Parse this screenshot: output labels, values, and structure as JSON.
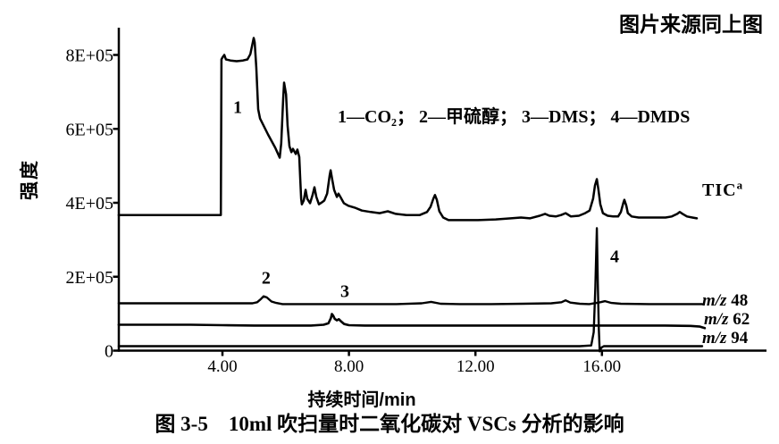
{
  "page": {
    "source_note": "图片来源同上图",
    "caption": "图 3-5　10ml 吹扫量时二氧化碳对 VSCs 分析的影响"
  },
  "chart_data": {
    "type": "line",
    "title": "",
    "xlabel": "持续时间/min",
    "ylabel": "强度",
    "legend": "1—CO₂； 2—甲硫醇； 3—DMS； 4—DMDS",
    "xlim": [
      0.7,
      21.2
    ],
    "ylim": [
      0,
      880000
    ],
    "y_value_scale": "series intensities are in units of 1E+05",
    "grid": false,
    "x_ticks": [
      {
        "t": 4,
        "label": "4.00"
      },
      {
        "t": 8,
        "label": "8.00"
      },
      {
        "t": 12,
        "label": "12.00"
      },
      {
        "t": 16,
        "label": "16.00"
      }
    ],
    "y_ticks": [
      {
        "v": 0,
        "label": "0"
      },
      {
        "v": 2,
        "label": "2E+05"
      },
      {
        "v": 4,
        "label": "4E+05"
      },
      {
        "v": 6,
        "label": "6E+05"
      },
      {
        "v": 8,
        "label": "8E+05"
      }
    ],
    "peak_annotations": [
      {
        "label": "1",
        "t": 4.48,
        "i": 6.6
      },
      {
        "label": "2",
        "t": 5.38,
        "i": 1.98
      },
      {
        "label": "3",
        "t": 7.87,
        "i": 1.62
      },
      {
        "label": "4",
        "t": 16.4,
        "i": 2.56
      }
    ],
    "series": [
      {
        "name": "TIC",
        "label": {
          "text": "TIC",
          "sup": "a"
        },
        "stroke_width": 2.5,
        "points": [
          [
            0.72,
            3.67
          ],
          [
            3.9,
            3.67
          ],
          [
            3.95,
            3.67
          ],
          [
            3.97,
            7.88
          ],
          [
            4.0,
            7.93
          ],
          [
            4.06,
            8.0
          ],
          [
            4.11,
            7.88
          ],
          [
            4.25,
            7.85
          ],
          [
            4.45,
            7.83
          ],
          [
            4.65,
            7.85
          ],
          [
            4.79,
            7.88
          ],
          [
            4.88,
            8.02
          ],
          [
            4.99,
            8.46
          ],
          [
            5.02,
            8.34
          ],
          [
            5.07,
            7.66
          ],
          [
            5.13,
            6.53
          ],
          [
            5.19,
            6.28
          ],
          [
            5.44,
            5.85
          ],
          [
            5.67,
            5.49
          ],
          [
            5.81,
            5.22
          ],
          [
            5.86,
            5.61
          ],
          [
            5.92,
            6.82
          ],
          [
            5.95,
            7.25
          ],
          [
            6.01,
            6.94
          ],
          [
            6.06,
            6.09
          ],
          [
            6.12,
            5.53
          ],
          [
            6.18,
            5.37
          ],
          [
            6.23,
            5.46
          ],
          [
            6.32,
            5.32
          ],
          [
            6.37,
            5.44
          ],
          [
            6.43,
            5.24
          ],
          [
            6.46,
            4.64
          ],
          [
            6.49,
            4.11
          ],
          [
            6.51,
            3.96
          ],
          [
            6.57,
            4.06
          ],
          [
            6.63,
            4.35
          ],
          [
            6.68,
            4.11
          ],
          [
            6.77,
            3.99
          ],
          [
            6.85,
            4.21
          ],
          [
            6.91,
            4.42
          ],
          [
            6.97,
            4.16
          ],
          [
            7.05,
            3.96
          ],
          [
            7.14,
            4.01
          ],
          [
            7.22,
            4.06
          ],
          [
            7.31,
            4.25
          ],
          [
            7.39,
            4.74
          ],
          [
            7.42,
            4.88
          ],
          [
            7.47,
            4.64
          ],
          [
            7.53,
            4.35
          ],
          [
            7.62,
            4.16
          ],
          [
            7.67,
            4.25
          ],
          [
            7.73,
            4.16
          ],
          [
            7.84,
            3.99
          ],
          [
            7.98,
            3.92
          ],
          [
            8.18,
            3.87
          ],
          [
            8.41,
            3.79
          ],
          [
            8.69,
            3.75
          ],
          [
            8.97,
            3.72
          ],
          [
            9.23,
            3.77
          ],
          [
            9.48,
            3.7
          ],
          [
            9.82,
            3.67
          ],
          [
            10.24,
            3.67
          ],
          [
            10.47,
            3.75
          ],
          [
            10.58,
            3.89
          ],
          [
            10.67,
            4.11
          ],
          [
            10.72,
            4.21
          ],
          [
            10.78,
            4.08
          ],
          [
            10.86,
            3.77
          ],
          [
            10.98,
            3.6
          ],
          [
            11.15,
            3.53
          ],
          [
            11.51,
            3.53
          ],
          [
            12.08,
            3.53
          ],
          [
            12.64,
            3.55
          ],
          [
            13.12,
            3.58
          ],
          [
            13.44,
            3.6
          ],
          [
            13.72,
            3.58
          ],
          [
            14.03,
            3.65
          ],
          [
            14.2,
            3.7
          ],
          [
            14.34,
            3.65
          ],
          [
            14.54,
            3.63
          ],
          [
            14.71,
            3.67
          ],
          [
            14.85,
            3.72
          ],
          [
            15.02,
            3.63
          ],
          [
            15.27,
            3.65
          ],
          [
            15.47,
            3.72
          ],
          [
            15.61,
            3.79
          ],
          [
            15.72,
            4.11
          ],
          [
            15.78,
            4.47
          ],
          [
            15.84,
            4.64
          ],
          [
            15.89,
            4.35
          ],
          [
            15.95,
            3.96
          ],
          [
            16.03,
            3.72
          ],
          [
            16.18,
            3.65
          ],
          [
            16.35,
            3.63
          ],
          [
            16.51,
            3.63
          ],
          [
            16.6,
            3.75
          ],
          [
            16.68,
            4.01
          ],
          [
            16.71,
            4.08
          ],
          [
            16.77,
            3.92
          ],
          [
            16.82,
            3.72
          ],
          [
            16.94,
            3.63
          ],
          [
            17.16,
            3.6
          ],
          [
            17.59,
            3.6
          ],
          [
            18.01,
            3.6
          ],
          [
            18.21,
            3.63
          ],
          [
            18.38,
            3.7
          ],
          [
            18.46,
            3.75
          ],
          [
            18.55,
            3.7
          ],
          [
            18.69,
            3.63
          ],
          [
            18.86,
            3.6
          ],
          [
            19.0,
            3.58
          ]
        ]
      },
      {
        "name": "m/z 48",
        "label": {
          "italic": "m/z",
          "rest": "48"
        },
        "stroke_width": 2.4,
        "points": [
          [
            0.72,
            1.28
          ],
          [
            2.0,
            1.28
          ],
          [
            3.5,
            1.28
          ],
          [
            4.5,
            1.28
          ],
          [
            4.95,
            1.28
          ],
          [
            5.1,
            1.31
          ],
          [
            5.22,
            1.4
          ],
          [
            5.3,
            1.47
          ],
          [
            5.4,
            1.44
          ],
          [
            5.55,
            1.33
          ],
          [
            5.7,
            1.29
          ],
          [
            5.9,
            1.26
          ],
          [
            6.5,
            1.26
          ],
          [
            7.5,
            1.26
          ],
          [
            8.5,
            1.26
          ],
          [
            9.5,
            1.26
          ],
          [
            10.3,
            1.28
          ],
          [
            10.6,
            1.32
          ],
          [
            10.9,
            1.27
          ],
          [
            11.5,
            1.26
          ],
          [
            12.5,
            1.26
          ],
          [
            13.5,
            1.27
          ],
          [
            14.4,
            1.28
          ],
          [
            14.72,
            1.31
          ],
          [
            14.85,
            1.36
          ],
          [
            15.0,
            1.3
          ],
          [
            15.3,
            1.27
          ],
          [
            15.6,
            1.26
          ],
          [
            15.95,
            1.31
          ],
          [
            16.1,
            1.34
          ],
          [
            16.3,
            1.29
          ],
          [
            16.6,
            1.27
          ],
          [
            17.5,
            1.26
          ],
          [
            18.5,
            1.26
          ],
          [
            19.17,
            1.26
          ]
        ]
      },
      {
        "name": "m/z 62",
        "label": {
          "italic": "m/z",
          "rest": "62"
        },
        "stroke_width": 2.6,
        "points": [
          [
            0.72,
            0.7
          ],
          [
            2.0,
            0.7
          ],
          [
            3.0,
            0.7
          ],
          [
            4.0,
            0.69
          ],
          [
            5.0,
            0.68
          ],
          [
            6.0,
            0.68
          ],
          [
            6.8,
            0.68
          ],
          [
            7.2,
            0.7
          ],
          [
            7.35,
            0.74
          ],
          [
            7.43,
            0.88
          ],
          [
            7.46,
            0.99
          ],
          [
            7.5,
            0.95
          ],
          [
            7.55,
            0.86
          ],
          [
            7.62,
            0.82
          ],
          [
            7.68,
            0.85
          ],
          [
            7.75,
            0.79
          ],
          [
            7.85,
            0.72
          ],
          [
            8.0,
            0.69
          ],
          [
            8.5,
            0.68
          ],
          [
            9.5,
            0.68
          ],
          [
            10.5,
            0.68
          ],
          [
            11.5,
            0.68
          ],
          [
            12.5,
            0.68
          ],
          [
            13.5,
            0.68
          ],
          [
            14.5,
            0.68
          ],
          [
            15.5,
            0.68
          ],
          [
            16.2,
            0.68
          ],
          [
            17.0,
            0.68
          ],
          [
            18.0,
            0.68
          ],
          [
            18.8,
            0.67
          ],
          [
            19.1,
            0.65
          ],
          [
            19.25,
            0.61
          ]
        ]
      },
      {
        "name": "m/z 94",
        "label": {
          "italic": "m/z",
          "rest": "94"
        },
        "stroke_width": 2.4,
        "points": [
          [
            0.72,
            0.12
          ],
          [
            2.0,
            0.12
          ],
          [
            4.0,
            0.12
          ],
          [
            6.0,
            0.12
          ],
          [
            8.0,
            0.12
          ],
          [
            10.0,
            0.12
          ],
          [
            12.0,
            0.12
          ],
          [
            14.0,
            0.12
          ],
          [
            15.3,
            0.12
          ],
          [
            15.66,
            0.14
          ],
          [
            15.74,
            0.5
          ],
          [
            15.79,
            1.7
          ],
          [
            15.84,
            3.31
          ],
          [
            15.87,
            1.8
          ],
          [
            15.9,
            0.6
          ],
          [
            15.93,
            -0.02
          ],
          [
            15.98,
            0.08
          ],
          [
            16.06,
            0.12
          ],
          [
            17.0,
            0.12
          ],
          [
            18.0,
            0.12
          ],
          [
            19.17,
            0.12
          ]
        ]
      }
    ]
  }
}
